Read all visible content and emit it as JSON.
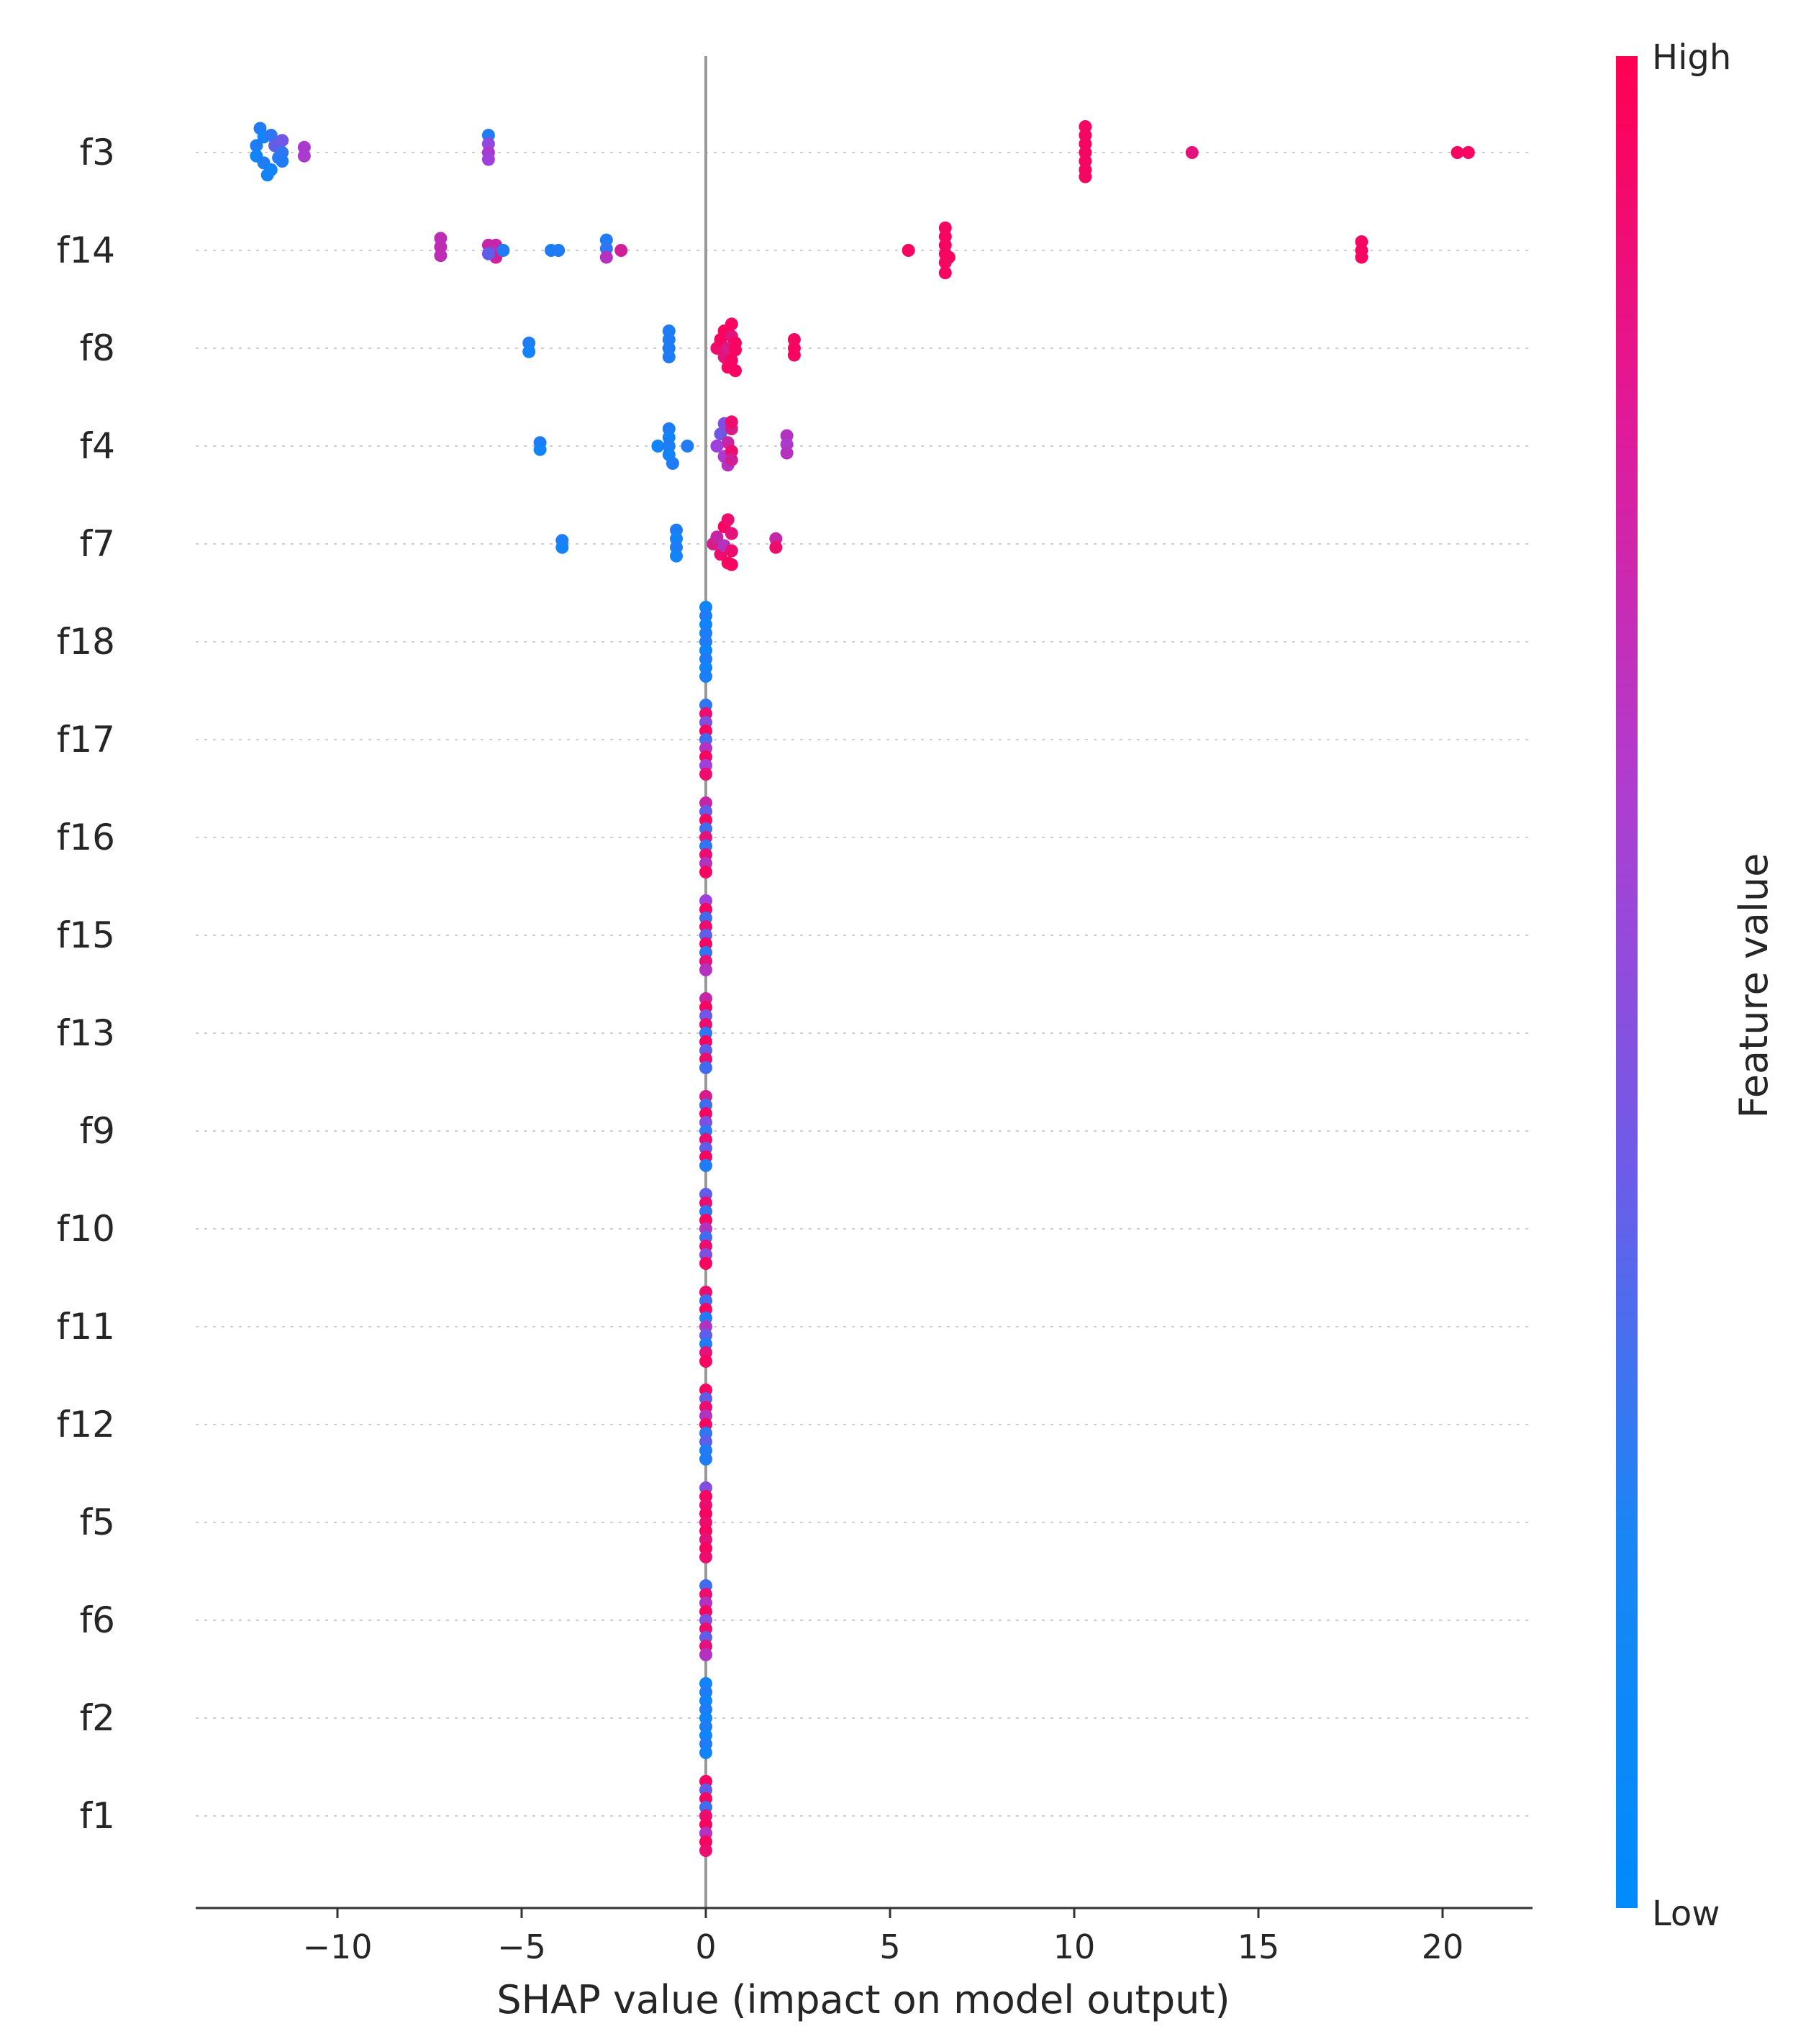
{
  "chart_data": {
    "type": "scatter",
    "subtype": "shap-beeswarm",
    "title": "",
    "xlabel": "SHAP value (impact on model output)",
    "ylabel": "",
    "xlim": [
      -14,
      22.3
    ],
    "xticks": [
      -10,
      -5,
      0,
      5,
      10,
      15,
      20
    ],
    "xtick_labels": [
      "−10",
      "−5",
      "0",
      "5",
      "10",
      "15",
      "20"
    ],
    "zero_line": 0,
    "colorbar": {
      "label": "Feature value",
      "high_label": "High",
      "low_label": "Low",
      "low_color": "#008bfb",
      "high_color": "#ff0052"
    },
    "features": [
      {
        "name": "f3",
        "points": [
          {
            "x": -12.1,
            "dy": -0.28,
            "c": 0.1
          },
          {
            "x": -12.0,
            "dy": -0.18,
            "c": 0.05
          },
          {
            "x": -12.2,
            "dy": -0.08,
            "c": 0.1
          },
          {
            "x": -12.2,
            "dy": 0.04,
            "c": 0.05
          },
          {
            "x": -12.0,
            "dy": 0.12,
            "c": 0.1
          },
          {
            "x": -11.8,
            "dy": 0.2,
            "c": 0.05
          },
          {
            "x": -11.8,
            "dy": -0.2,
            "c": 0.15
          },
          {
            "x": -11.7,
            "dy": -0.08,
            "c": 0.3
          },
          {
            "x": -11.6,
            "dy": 0.06,
            "c": 0.1
          },
          {
            "x": -11.5,
            "dy": -0.14,
            "c": 0.35
          },
          {
            "x": -11.5,
            "dy": 0.0,
            "c": 0.15
          },
          {
            "x": -11.5,
            "dy": 0.1,
            "c": 0.1
          },
          {
            "x": -11.9,
            "dy": 0.26,
            "c": 0.05
          },
          {
            "x": -10.9,
            "dy": -0.06,
            "c": 0.55
          },
          {
            "x": -10.9,
            "dy": 0.04,
            "c": 0.55
          },
          {
            "x": -5.9,
            "dy": -0.2,
            "c": 0.1
          },
          {
            "x": -5.9,
            "dy": -0.1,
            "c": 0.45
          },
          {
            "x": -5.9,
            "dy": 0.0,
            "c": 0.55
          },
          {
            "x": -5.9,
            "dy": 0.08,
            "c": 0.5
          },
          {
            "x": 10.3,
            "dy": -0.3,
            "c": 0.95
          },
          {
            "x": 10.3,
            "dy": -0.2,
            "c": 0.95
          },
          {
            "x": 10.3,
            "dy": -0.1,
            "c": 0.95
          },
          {
            "x": 10.3,
            "dy": 0.0,
            "c": 0.95
          },
          {
            "x": 10.3,
            "dy": 0.1,
            "c": 0.95
          },
          {
            "x": 10.3,
            "dy": 0.2,
            "c": 0.95
          },
          {
            "x": 10.3,
            "dy": 0.28,
            "c": 0.95
          },
          {
            "x": 13.2,
            "dy": 0.0,
            "c": 0.85
          },
          {
            "x": 20.4,
            "dy": 0.0,
            "c": 0.95
          },
          {
            "x": 20.7,
            "dy": 0.0,
            "c": 0.95
          }
        ]
      },
      {
        "name": "f14",
        "points": [
          {
            "x": -7.2,
            "dy": -0.14,
            "c": 0.65
          },
          {
            "x": -7.2,
            "dy": -0.04,
            "c": 0.65
          },
          {
            "x": -7.2,
            "dy": 0.06,
            "c": 0.65
          },
          {
            "x": -5.9,
            "dy": -0.06,
            "c": 0.7
          },
          {
            "x": -5.7,
            "dy": -0.06,
            "c": 0.7
          },
          {
            "x": -5.8,
            "dy": 0.02,
            "c": 0.6
          },
          {
            "x": -5.7,
            "dy": 0.08,
            "c": 0.75
          },
          {
            "x": -5.5,
            "dy": 0.0,
            "c": 0.1
          },
          {
            "x": -5.9,
            "dy": 0.04,
            "c": 0.3
          },
          {
            "x": -4.2,
            "dy": 0.0,
            "c": 0.1
          },
          {
            "x": -4.0,
            "dy": 0.0,
            "c": 0.1
          },
          {
            "x": -2.7,
            "dy": -0.12,
            "c": 0.1
          },
          {
            "x": -2.7,
            "dy": -0.02,
            "c": 0.15
          },
          {
            "x": -2.7,
            "dy": 0.08,
            "c": 0.6
          },
          {
            "x": -2.3,
            "dy": 0.0,
            "c": 0.75
          },
          {
            "x": 5.5,
            "dy": 0.0,
            "c": 0.95
          },
          {
            "x": 6.5,
            "dy": -0.26,
            "c": 0.95
          },
          {
            "x": 6.5,
            "dy": -0.16,
            "c": 0.95
          },
          {
            "x": 6.5,
            "dy": -0.06,
            "c": 0.95
          },
          {
            "x": 6.5,
            "dy": 0.04,
            "c": 0.95
          },
          {
            "x": 6.5,
            "dy": 0.14,
            "c": 0.95
          },
          {
            "x": 6.5,
            "dy": 0.26,
            "c": 0.95
          },
          {
            "x": 6.6,
            "dy": 0.08,
            "c": 0.95
          },
          {
            "x": 17.8,
            "dy": -0.1,
            "c": 0.95
          },
          {
            "x": 17.8,
            "dy": 0.0,
            "c": 0.95
          },
          {
            "x": 17.8,
            "dy": 0.08,
            "c": 0.95
          }
        ]
      },
      {
        "name": "f8",
        "points": [
          {
            "x": -4.8,
            "dy": -0.06,
            "c": 0.1
          },
          {
            "x": -4.8,
            "dy": 0.04,
            "c": 0.05
          },
          {
            "x": -1.0,
            "dy": -0.2,
            "c": 0.1
          },
          {
            "x": -1.0,
            "dy": -0.1,
            "c": 0.1
          },
          {
            "x": -1.0,
            "dy": 0.0,
            "c": 0.1
          },
          {
            "x": -1.0,
            "dy": 0.1,
            "c": 0.1
          },
          {
            "x": 0.3,
            "dy": 0.0,
            "c": 0.9
          },
          {
            "x": 0.4,
            "dy": -0.1,
            "c": 0.95
          },
          {
            "x": 0.5,
            "dy": 0.1,
            "c": 0.85
          },
          {
            "x": 0.5,
            "dy": -0.2,
            "c": 0.95
          },
          {
            "x": 0.6,
            "dy": 0.0,
            "c": 0.8
          },
          {
            "x": 0.6,
            "dy": 0.22,
            "c": 0.95
          },
          {
            "x": 0.7,
            "dy": -0.28,
            "c": 0.95
          },
          {
            "x": 0.7,
            "dy": -0.14,
            "c": 0.85
          },
          {
            "x": 0.7,
            "dy": 0.14,
            "c": 0.95
          },
          {
            "x": 0.8,
            "dy": 0.02,
            "c": 0.95
          },
          {
            "x": 0.8,
            "dy": 0.26,
            "c": 0.95
          },
          {
            "x": 0.8,
            "dy": -0.06,
            "c": 0.95
          },
          {
            "x": 2.4,
            "dy": -0.1,
            "c": 0.95
          },
          {
            "x": 2.4,
            "dy": 0.0,
            "c": 0.95
          },
          {
            "x": 2.4,
            "dy": 0.08,
            "c": 0.95
          }
        ]
      },
      {
        "name": "f4",
        "points": [
          {
            "x": -4.5,
            "dy": -0.04,
            "c": 0.1
          },
          {
            "x": -4.5,
            "dy": 0.04,
            "c": 0.05
          },
          {
            "x": -1.3,
            "dy": 0.0,
            "c": 0.05
          },
          {
            "x": -1.0,
            "dy": -0.2,
            "c": 0.1
          },
          {
            "x": -1.0,
            "dy": -0.1,
            "c": 0.05
          },
          {
            "x": -1.0,
            "dy": 0.0,
            "c": 0.1
          },
          {
            "x": -1.0,
            "dy": 0.1,
            "c": 0.05
          },
          {
            "x": -0.9,
            "dy": 0.2,
            "c": 0.1
          },
          {
            "x": -0.5,
            "dy": 0.0,
            "c": 0.1
          },
          {
            "x": 0.3,
            "dy": 0.0,
            "c": 0.5
          },
          {
            "x": 0.4,
            "dy": -0.14,
            "c": 0.35
          },
          {
            "x": 0.5,
            "dy": -0.26,
            "c": 0.4
          },
          {
            "x": 0.5,
            "dy": 0.12,
            "c": 0.55
          },
          {
            "x": 0.6,
            "dy": 0.22,
            "c": 0.6
          },
          {
            "x": 0.6,
            "dy": -0.04,
            "c": 0.7
          },
          {
            "x": 0.7,
            "dy": -0.2,
            "c": 0.8
          },
          {
            "x": 0.7,
            "dy": 0.06,
            "c": 0.9
          },
          {
            "x": 0.7,
            "dy": 0.16,
            "c": 0.75
          },
          {
            "x": 0.7,
            "dy": -0.28,
            "c": 0.9
          },
          {
            "x": 2.2,
            "dy": -0.12,
            "c": 0.6
          },
          {
            "x": 2.2,
            "dy": -0.02,
            "c": 0.55
          },
          {
            "x": 2.2,
            "dy": 0.08,
            "c": 0.6
          }
        ]
      },
      {
        "name": "f7",
        "points": [
          {
            "x": -3.9,
            "dy": -0.04,
            "c": 0.1
          },
          {
            "x": -3.9,
            "dy": 0.04,
            "c": 0.05
          },
          {
            "x": -0.8,
            "dy": -0.16,
            "c": 0.1
          },
          {
            "x": -0.8,
            "dy": -0.06,
            "c": 0.05
          },
          {
            "x": -0.8,
            "dy": 0.04,
            "c": 0.1
          },
          {
            "x": -0.8,
            "dy": 0.14,
            "c": 0.05
          },
          {
            "x": 0.2,
            "dy": 0.0,
            "c": 0.8
          },
          {
            "x": 0.3,
            "dy": -0.08,
            "c": 0.7
          },
          {
            "x": 0.4,
            "dy": 0.12,
            "c": 0.9
          },
          {
            "x": 0.5,
            "dy": -0.2,
            "c": 0.95
          },
          {
            "x": 0.5,
            "dy": 0.02,
            "c": 0.6
          },
          {
            "x": 0.6,
            "dy": -0.28,
            "c": 0.9
          },
          {
            "x": 0.6,
            "dy": 0.22,
            "c": 0.95
          },
          {
            "x": 0.7,
            "dy": -0.12,
            "c": 0.85
          },
          {
            "x": 0.7,
            "dy": 0.08,
            "c": 0.9
          },
          {
            "x": 0.7,
            "dy": 0.24,
            "c": 0.95
          },
          {
            "x": 1.9,
            "dy": -0.06,
            "c": 0.7
          },
          {
            "x": 1.9,
            "dy": 0.04,
            "c": 0.9
          }
        ]
      },
      {
        "name": "f18",
        "mode": "column",
        "x": 0,
        "colors": [
          0.05,
          0.1,
          0.05,
          0.08,
          0.1,
          0.05,
          0.1,
          0.05,
          0.08
        ]
      },
      {
        "name": "f17",
        "mode": "column",
        "x": 0,
        "colors": [
          0.15,
          0.9,
          0.4,
          0.95,
          0.2,
          0.6,
          0.95,
          0.5,
          0.9
        ]
      },
      {
        "name": "f16",
        "mode": "column",
        "x": 0,
        "colors": [
          0.7,
          0.3,
          0.95,
          0.2,
          0.85,
          0.15,
          0.9,
          0.6,
          0.95
        ]
      },
      {
        "name": "f15",
        "mode": "column",
        "x": 0,
        "colors": [
          0.5,
          0.95,
          0.2,
          0.9,
          0.3,
          0.95,
          0.15,
          0.85,
          0.6
        ]
      },
      {
        "name": "f13",
        "mode": "column",
        "x": 0,
        "colors": [
          0.7,
          0.95,
          0.35,
          0.9,
          0.15,
          0.95,
          0.3,
          0.9,
          0.2
        ]
      },
      {
        "name": "f9",
        "mode": "column",
        "x": 0,
        "colors": [
          0.8,
          0.2,
          0.95,
          0.4,
          0.15,
          0.9,
          0.3,
          0.95,
          0.1
        ]
      },
      {
        "name": "f10",
        "mode": "column",
        "x": 0,
        "colors": [
          0.3,
          0.9,
          0.15,
          0.95,
          0.6,
          0.2,
          0.9,
          0.4,
          0.95
        ]
      },
      {
        "name": "f11",
        "mode": "column",
        "x": 0,
        "colors": [
          0.9,
          0.2,
          0.95,
          0.1,
          0.6,
          0.3,
          0.1,
          0.85,
          0.95
        ]
      },
      {
        "name": "f12",
        "mode": "column",
        "x": 0,
        "colors": [
          0.95,
          0.3,
          0.9,
          0.6,
          0.95,
          0.15,
          0.3,
          0.1,
          0.1
        ]
      },
      {
        "name": "f5",
        "mode": "column",
        "x": 0,
        "colors": [
          0.4,
          0.95,
          0.9,
          0.95,
          0.9,
          0.95,
          0.85,
          0.95,
          0.9
        ]
      },
      {
        "name": "f6",
        "mode": "column",
        "x": 0,
        "colors": [
          0.2,
          0.9,
          0.6,
          0.95,
          0.4,
          0.9,
          0.3,
          0.85,
          0.6
        ]
      },
      {
        "name": "f2",
        "mode": "column",
        "x": 0,
        "colors": [
          0.05,
          0.1,
          0.05,
          0.1,
          0.05,
          0.1,
          0.05,
          0.1,
          0.05
        ]
      },
      {
        "name": "f1",
        "mode": "column",
        "x": 0,
        "colors": [
          0.95,
          0.3,
          0.95,
          0.2,
          0.9,
          0.95,
          0.6,
          0.95,
          0.9
        ]
      }
    ]
  }
}
